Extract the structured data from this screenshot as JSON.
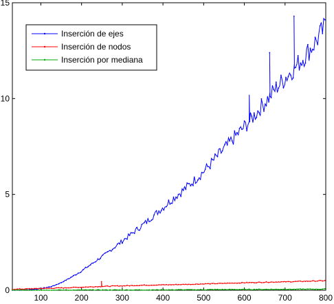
{
  "chart_data": {
    "type": "line",
    "title": "",
    "xlabel": "",
    "ylabel": "",
    "xlim": [
      30,
      800
    ],
    "ylim": [
      0,
      15
    ],
    "xticks": [
      100,
      200,
      300,
      400,
      500,
      600,
      700,
      800
    ],
    "yticks": [
      0,
      5,
      10,
      15
    ],
    "grid": false,
    "legend_position": "top-left",
    "series": [
      {
        "name": "Inserción de ejes",
        "color": "#0000ff",
        "marker": "dot",
        "x": [
          30,
          60,
          90,
          110,
          130,
          150,
          170,
          200,
          230,
          260,
          290,
          320,
          350,
          380,
          410,
          440,
          470,
          500,
          530,
          560,
          590,
          620,
          650,
          680,
          710,
          740,
          770,
          800
        ],
        "y": [
          0.0,
          0.02,
          0.06,
          0.12,
          0.22,
          0.4,
          0.62,
          1.0,
          1.45,
          1.9,
          2.4,
          2.9,
          3.4,
          3.95,
          4.5,
          5.05,
          5.6,
          6.2,
          6.9,
          7.6,
          8.3,
          9.0,
          9.8,
          10.6,
          11.3,
          12.0,
          12.8,
          13.8
        ],
        "spikes": [
          [
            612,
            10.2
          ],
          [
            662,
            12.4
          ],
          [
            722,
            14.3
          ]
        ]
      },
      {
        "name": "Inserción de nodos",
        "color": "#ff0000",
        "marker": "dot",
        "x": [
          30,
          100,
          150,
          200,
          250,
          300,
          350,
          400,
          450,
          500,
          550,
          600,
          650,
          700,
          750,
          800
        ],
        "y": [
          0.05,
          0.09,
          0.12,
          0.16,
          0.2,
          0.23,
          0.26,
          0.28,
          0.3,
          0.33,
          0.36,
          0.39,
          0.42,
          0.44,
          0.47,
          0.5
        ],
        "spikes": [
          [
            249,
            0.45
          ]
        ]
      },
      {
        "name": "Inserción por mediana",
        "color": "#00aa00",
        "marker": "dot",
        "x": [
          30,
          100,
          200,
          300,
          400,
          500,
          600,
          700,
          800
        ],
        "y": [
          0.0,
          0.005,
          0.01,
          0.015,
          0.02,
          0.03,
          0.04,
          0.05,
          0.06
        ],
        "spikes": []
      }
    ]
  }
}
